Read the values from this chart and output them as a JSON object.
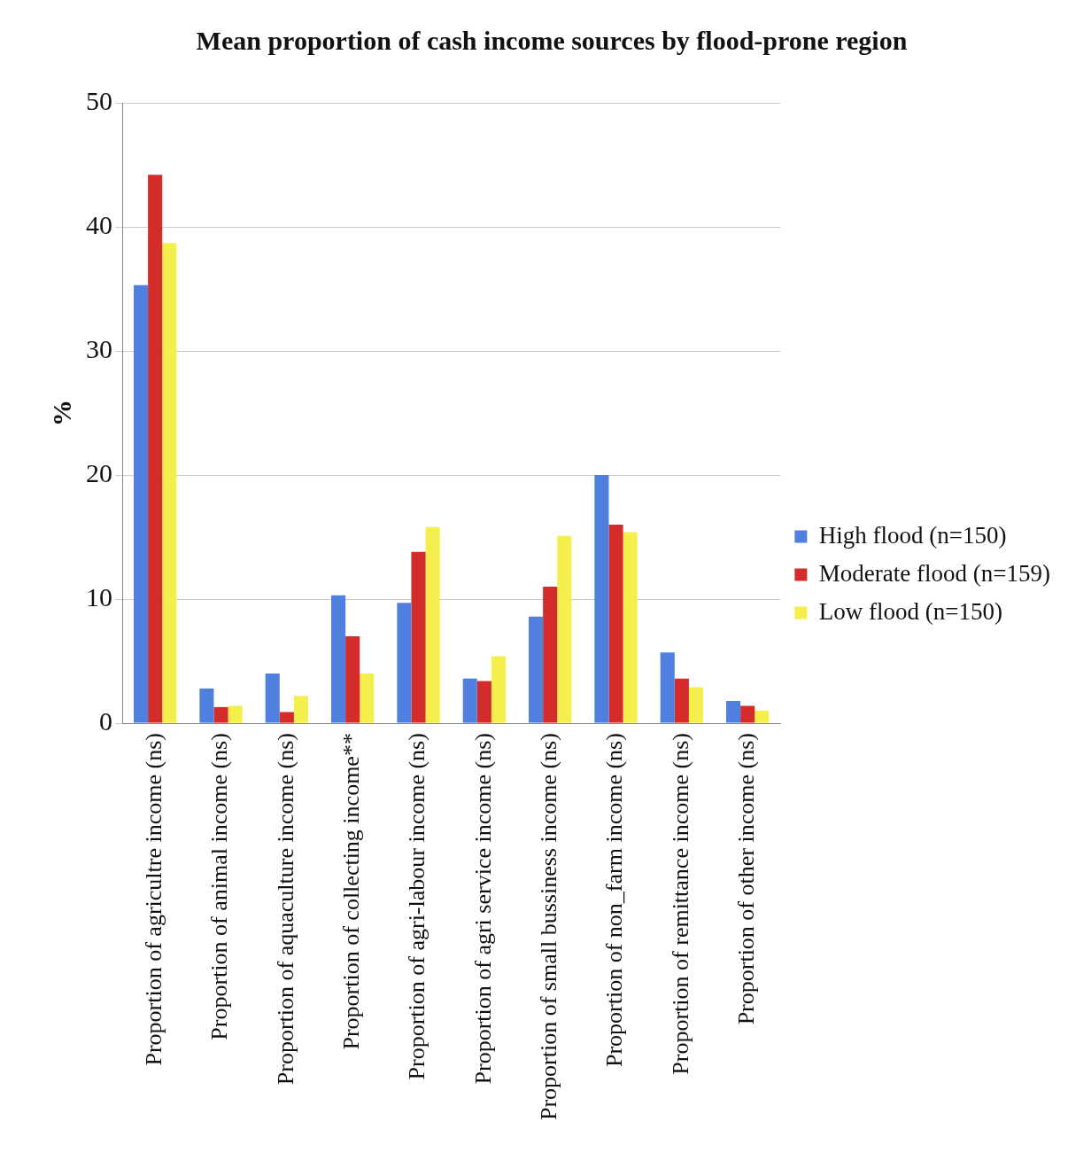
{
  "chart_data": {
    "type": "bar",
    "title": "Mean proportion of cash income sources by flood-prone region",
    "ylabel": "%",
    "categories": [
      "Proportion of agricultre income (ns)",
      "Proportion of animal income (ns)",
      "Proportion of aquaculture income (ns)",
      "Proportion of collecting income**",
      "Proportion of agri-labour income (ns)",
      "Proportion of agri service income (ns)",
      "Proportion of small bussiness income (ns)",
      "Proportion of non_farm income (ns)",
      "Proportion of remittance income (ns)",
      "Proportion of other income (ns)"
    ],
    "series": [
      {
        "name": "High flood (n=150)",
        "color": "#4f7fdf",
        "values": [
          35.3,
          2.8,
          4.0,
          10.3,
          9.7,
          3.6,
          8.6,
          20.0,
          5.7,
          1.8
        ]
      },
      {
        "name": "Moderate flood (n=159)",
        "color": "#d42b2b",
        "values": [
          44.2,
          1.3,
          0.9,
          7.0,
          13.8,
          3.4,
          11.0,
          16.0,
          3.6,
          1.4
        ]
      },
      {
        "name": "Low flood (n=150)",
        "color": "#f4ef4c",
        "values": [
          38.7,
          1.4,
          2.2,
          4.0,
          15.8,
          5.4,
          15.1,
          15.4,
          2.9,
          1.0
        ]
      }
    ],
    "ylim": [
      0,
      50
    ],
    "yticks": [
      0,
      10,
      20,
      30,
      40,
      50
    ],
    "grid": "y",
    "legend": "right"
  }
}
